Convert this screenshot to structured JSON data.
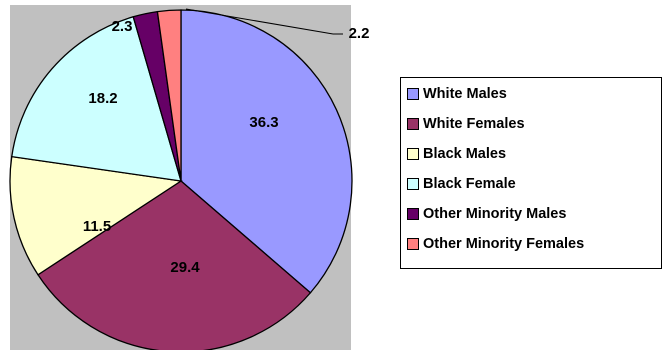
{
  "chart_data": {
    "type": "pie",
    "slices": [
      {
        "label": "White Males",
        "value": 36.3,
        "color": "#9999FF"
      },
      {
        "label": "White Females",
        "value": 29.4,
        "color": "#993366"
      },
      {
        "label": "Black Males",
        "value": 11.5,
        "color": "#FFFFCC"
      },
      {
        "label": "Black Female",
        "value": 18.2,
        "color": "#CCFFFF"
      },
      {
        "label": "Other Minority Males",
        "value": 2.3,
        "color": "#660066"
      },
      {
        "label": "Other Minority Females",
        "value": 2.2,
        "color": "#FF8080"
      }
    ],
    "data_labels": [
      "36.3",
      "29.4",
      "11.5",
      "18.2",
      "2.3",
      "2.2"
    ],
    "legend": {
      "position": "right"
    },
    "plot_area_color": "#C0C0C0"
  }
}
